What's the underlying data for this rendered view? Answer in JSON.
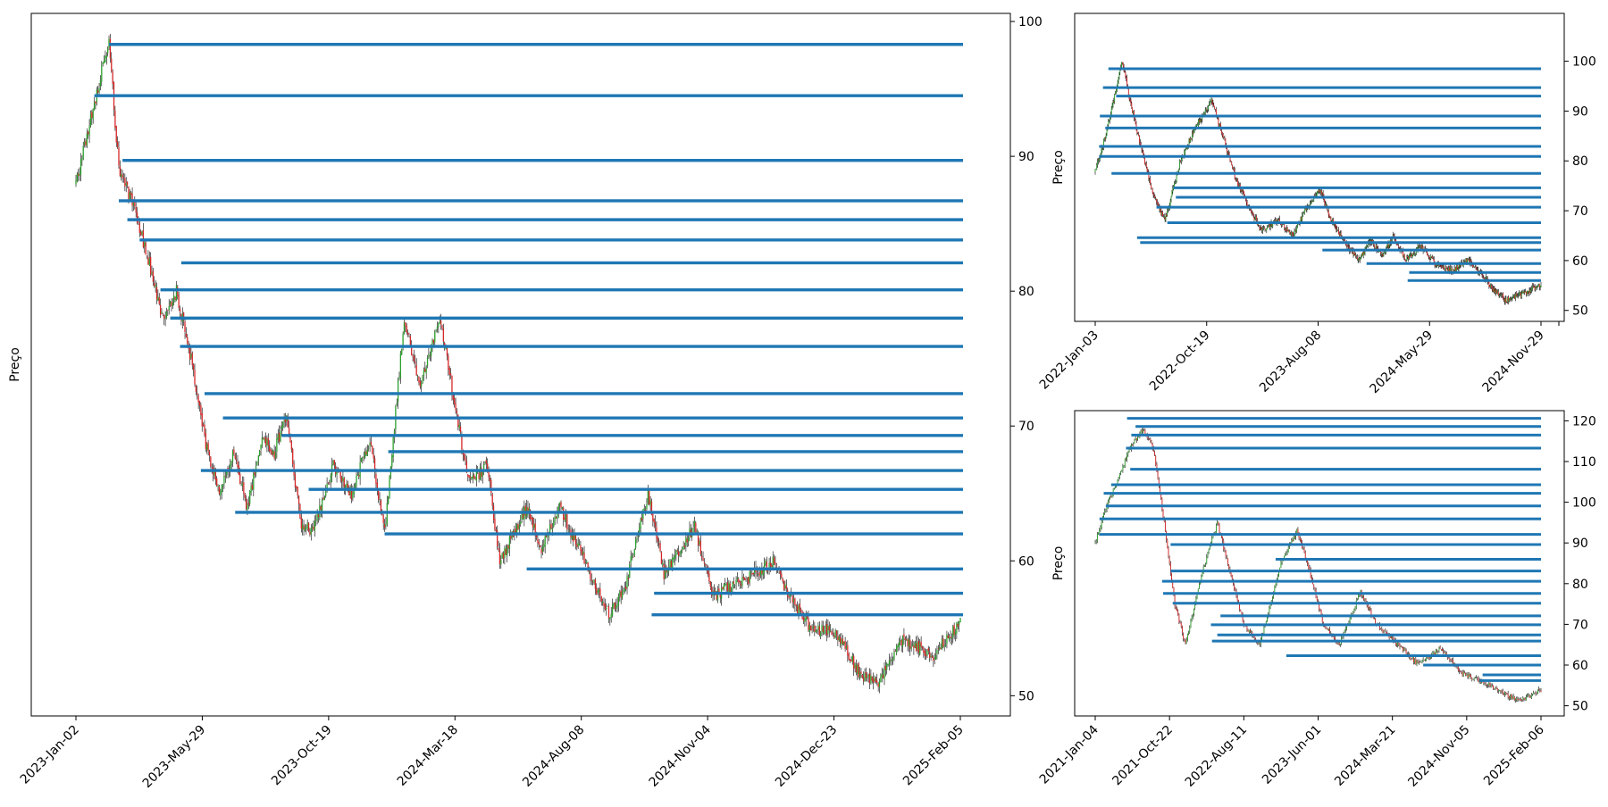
{
  "colors": {
    "level_line": "#1f77b4",
    "candle_up": "#2ca02c",
    "candle_down": "#d62728",
    "wick": "#000000"
  },
  "chart_data": [
    {
      "type": "candlestick",
      "ylabel": "Preço",
      "x_tick_labels": [
        "2023-Jan-02",
        "2023-May-29",
        "2023-Oct-19",
        "2024-Mar-18",
        "2024-Aug-08",
        "2024-Nov-04",
        "2024-Dec-23",
        "2025-Feb-05"
      ],
      "y_ticks": [
        50,
        60,
        70,
        80,
        90,
        100
      ],
      "ylim": [
        48.5,
        100.6
      ],
      "n_bars": 540,
      "y_axis_side": "right",
      "grid": false,
      "price_path": [
        [
          0,
          88.0
        ],
        [
          15,
          94.0
        ],
        [
          27,
          98.5
        ],
        [
          35,
          89.0
        ],
        [
          48,
          86.0
        ],
        [
          60,
          82.0
        ],
        [
          70,
          78.0
        ],
        [
          82,
          80.0
        ],
        [
          95,
          74.5
        ],
        [
          105,
          69.0
        ],
        [
          118,
          65.0
        ],
        [
          128,
          68.0
        ],
        [
          140,
          64.0
        ],
        [
          152,
          69.0
        ],
        [
          162,
          68.0
        ],
        [
          172,
          71.0
        ],
        [
          183,
          63.0
        ],
        [
          192,
          62.0
        ],
        [
          210,
          67.0
        ],
        [
          225,
          65.0
        ],
        [
          240,
          69.0
        ],
        [
          252,
          62.0
        ],
        [
          268,
          78.0
        ],
        [
          280,
          73.0
        ],
        [
          297,
          78.0
        ],
        [
          320,
          66.0
        ],
        [
          336,
          67.0
        ],
        [
          346,
          60.0
        ],
        [
          368,
          64.0
        ],
        [
          380,
          61.0
        ],
        [
          395,
          64.0
        ],
        [
          420,
          59.0
        ],
        [
          435,
          56.0
        ],
        [
          448,
          58.0
        ],
        [
          467,
          65.0
        ],
        [
          480,
          59.0
        ],
        [
          505,
          62.5
        ],
        [
          520,
          57.5
        ],
        [
          545,
          58.5
        ],
        [
          569,
          60.0
        ],
        [
          585,
          57.0
        ],
        [
          600,
          55.0
        ],
        [
          620,
          54.8
        ],
        [
          640,
          51.5
        ],
        [
          655,
          51.0
        ],
        [
          675,
          54.0
        ],
        [
          700,
          53.0
        ],
        [
          722,
          55.5
        ]
      ],
      "levels": [
        {
          "price": 98.3,
          "start": 27
        },
        {
          "price": 94.5,
          "start": 15
        },
        {
          "price": 89.7,
          "start": 38
        },
        {
          "price": 86.7,
          "start": 35
        },
        {
          "price": 85.3,
          "start": 42
        },
        {
          "price": 83.8,
          "start": 52
        },
        {
          "price": 82.1,
          "start": 86
        },
        {
          "price": 80.1,
          "start": 69
        },
        {
          "price": 78.0,
          "start": 77
        },
        {
          "price": 75.9,
          "start": 85
        },
        {
          "price": 72.4,
          "start": 105
        },
        {
          "price": 70.6,
          "start": 120
        },
        {
          "price": 69.3,
          "start": 168
        },
        {
          "price": 68.1,
          "start": 255
        },
        {
          "price": 66.7,
          "start": 102
        },
        {
          "price": 65.3,
          "start": 190
        },
        {
          "price": 63.6,
          "start": 130
        },
        {
          "price": 62.0,
          "start": 252
        },
        {
          "price": 59.4,
          "start": 368
        },
        {
          "price": 57.6,
          "start": 472
        },
        {
          "price": 56.0,
          "start": 470
        }
      ]
    },
    {
      "type": "candlestick",
      "ylabel": "Preço",
      "x_tick_labels": [
        "2022-Jan-03",
        "2022-Oct-19",
        "2023-Aug-08",
        "2024-May-29",
        "2024-Nov-29"
      ],
      "y_ticks": [
        50,
        60,
        70,
        80,
        90,
        100
      ],
      "ylim": [
        47.8,
        109.6
      ],
      "n_bars": 800,
      "y_axis_side": "right",
      "grid": false,
      "price_path": [
        [
          0,
          78.0
        ],
        [
          10,
          83.0
        ],
        [
          25,
          93.0
        ],
        [
          35,
          100.0
        ],
        [
          45,
          92.0
        ],
        [
          60,
          82.0
        ],
        [
          75,
          73.0
        ],
        [
          90,
          68.0
        ],
        [
          110,
          80.0
        ],
        [
          130,
          87.0
        ],
        [
          150,
          92.0
        ],
        [
          165,
          85.0
        ],
        [
          180,
          77.0
        ],
        [
          200,
          70.0
        ],
        [
          215,
          66.0
        ],
        [
          235,
          68.0
        ],
        [
          255,
          65.0
        ],
        [
          270,
          70.0
        ],
        [
          290,
          74.0
        ],
        [
          305,
          68.0
        ],
        [
          320,
          64.0
        ],
        [
          340,
          60.0
        ],
        [
          355,
          64.0
        ],
        [
          370,
          61.0
        ],
        [
          385,
          65.0
        ],
        [
          400,
          60.0
        ],
        [
          420,
          63.0
        ],
        [
          440,
          59.0
        ],
        [
          460,
          58.0
        ],
        [
          480,
          60.0
        ],
        [
          500,
          57.0
        ],
        [
          515,
          54.0
        ],
        [
          530,
          52.0
        ],
        [
          545,
          53.0
        ],
        [
          560,
          54.0
        ],
        [
          575,
          55.0
        ]
      ],
      "levels": [
        {
          "price": 98.5,
          "start": 17
        },
        {
          "price": 94.7,
          "start": 10
        },
        {
          "price": 93.0,
          "start": 27
        },
        {
          "price": 89.0,
          "start": 6
        },
        {
          "price": 86.6,
          "start": 13
        },
        {
          "price": 82.9,
          "start": 5
        },
        {
          "price": 80.9,
          "start": 5
        },
        {
          "price": 77.5,
          "start": 21
        },
        {
          "price": 74.6,
          "start": 101
        },
        {
          "price": 72.7,
          "start": 104
        },
        {
          "price": 70.7,
          "start": 79
        },
        {
          "price": 67.6,
          "start": 93
        },
        {
          "price": 64.6,
          "start": 54
        },
        {
          "price": 63.6,
          "start": 58
        },
        {
          "price": 62.1,
          "start": 293
        },
        {
          "price": 59.4,
          "start": 350
        },
        {
          "price": 57.6,
          "start": 405
        },
        {
          "price": 56.0,
          "start": 403
        }
      ]
    },
    {
      "type": "candlestick",
      "ylabel": "Preço",
      "x_tick_labels": [
        "2021-Jan-04",
        "2021-Oct-22",
        "2022-Aug-11",
        "2023-Jun-01",
        "2024-Mar-21",
        "2024-Nov-05",
        "2025-Feb-06"
      ],
      "y_ticks": [
        50,
        60,
        70,
        80,
        90,
        100,
        110,
        120
      ],
      "ylim": [
        47.5,
        122.5
      ],
      "n_bars": 1040,
      "y_axis_side": "right",
      "grid": false,
      "price_path": [
        [
          0,
          90.0
        ],
        [
          12,
          100.0
        ],
        [
          22,
          106.0
        ],
        [
          32,
          113.0
        ],
        [
          45,
          118.0
        ],
        [
          55,
          113.0
        ],
        [
          65,
          95.0
        ],
        [
          75,
          75.0
        ],
        [
          85,
          65.0
        ],
        [
          100,
          82.0
        ],
        [
          115,
          95.0
        ],
        [
          125,
          85.0
        ],
        [
          140,
          70.0
        ],
        [
          155,
          65.0
        ],
        [
          175,
          85.0
        ],
        [
          190,
          93.0
        ],
        [
          200,
          85.0
        ],
        [
          215,
          70.0
        ],
        [
          230,
          65.0
        ],
        [
          250,
          78.0
        ],
        [
          265,
          70.0
        ],
        [
          285,
          65.0
        ],
        [
          305,
          60.0
        ],
        [
          325,
          64.0
        ],
        [
          345,
          58.0
        ],
        [
          365,
          56.0
        ],
        [
          385,
          53.0
        ],
        [
          400,
          51.0
        ],
        [
          420,
          54.0
        ]
      ],
      "levels": [
        {
          "price": 120.6,
          "start": 30
        },
        {
          "price": 118.6,
          "start": 38
        },
        {
          "price": 116.5,
          "start": 34
        },
        {
          "price": 113.3,
          "start": 29
        },
        {
          "price": 108.1,
          "start": 33
        },
        {
          "price": 104.3,
          "start": 15
        },
        {
          "price": 102.2,
          "start": 8
        },
        {
          "price": 99.1,
          "start": 10
        },
        {
          "price": 95.9,
          "start": 4
        },
        {
          "price": 92.1,
          "start": 4
        },
        {
          "price": 89.6,
          "start": 71
        },
        {
          "price": 86.0,
          "start": 170
        },
        {
          "price": 83.1,
          "start": 71
        },
        {
          "price": 80.6,
          "start": 63
        },
        {
          "price": 77.6,
          "start": 64
        },
        {
          "price": 75.2,
          "start": 73
        },
        {
          "price": 72.1,
          "start": 118
        },
        {
          "price": 69.9,
          "start": 109
        },
        {
          "price": 67.4,
          "start": 115
        },
        {
          "price": 65.9,
          "start": 110
        },
        {
          "price": 62.3,
          "start": 180
        },
        {
          "price": 60.0,
          "start": 309
        },
        {
          "price": 57.6,
          "start": 365
        },
        {
          "price": 56.2,
          "start": 362
        }
      ]
    }
  ]
}
